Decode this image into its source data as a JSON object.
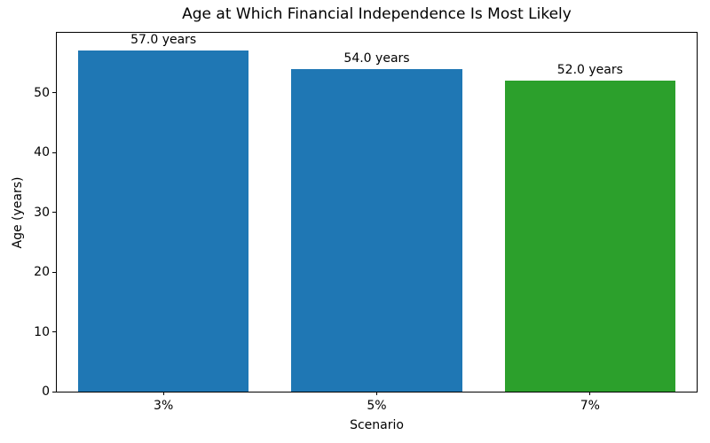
{
  "chart_data": {
    "type": "bar",
    "title": "Age at Which Financial Independence Is Most Likely",
    "xlabel": "Scenario",
    "ylabel": "Age (years)",
    "categories": [
      "3%",
      "5%",
      "7%"
    ],
    "values": [
      57.0,
      54.0,
      52.0
    ],
    "bar_labels": [
      "57.0 years",
      "54.0 years",
      "52.0 years"
    ],
    "bar_colors": [
      "#1f77b4",
      "#1f77b4",
      "#2ca02c"
    ],
    "ylim": [
      0,
      60
    ],
    "yticks": [
      0,
      10,
      20,
      30,
      40,
      50
    ],
    "grid": false,
    "legend": "none",
    "bar_width_fraction": 0.8
  },
  "colors": {
    "bar_default": "#1f77b4",
    "bar_highlight": "#2ca02c",
    "spine": "#000000",
    "text": "#000000",
    "background": "#ffffff"
  }
}
